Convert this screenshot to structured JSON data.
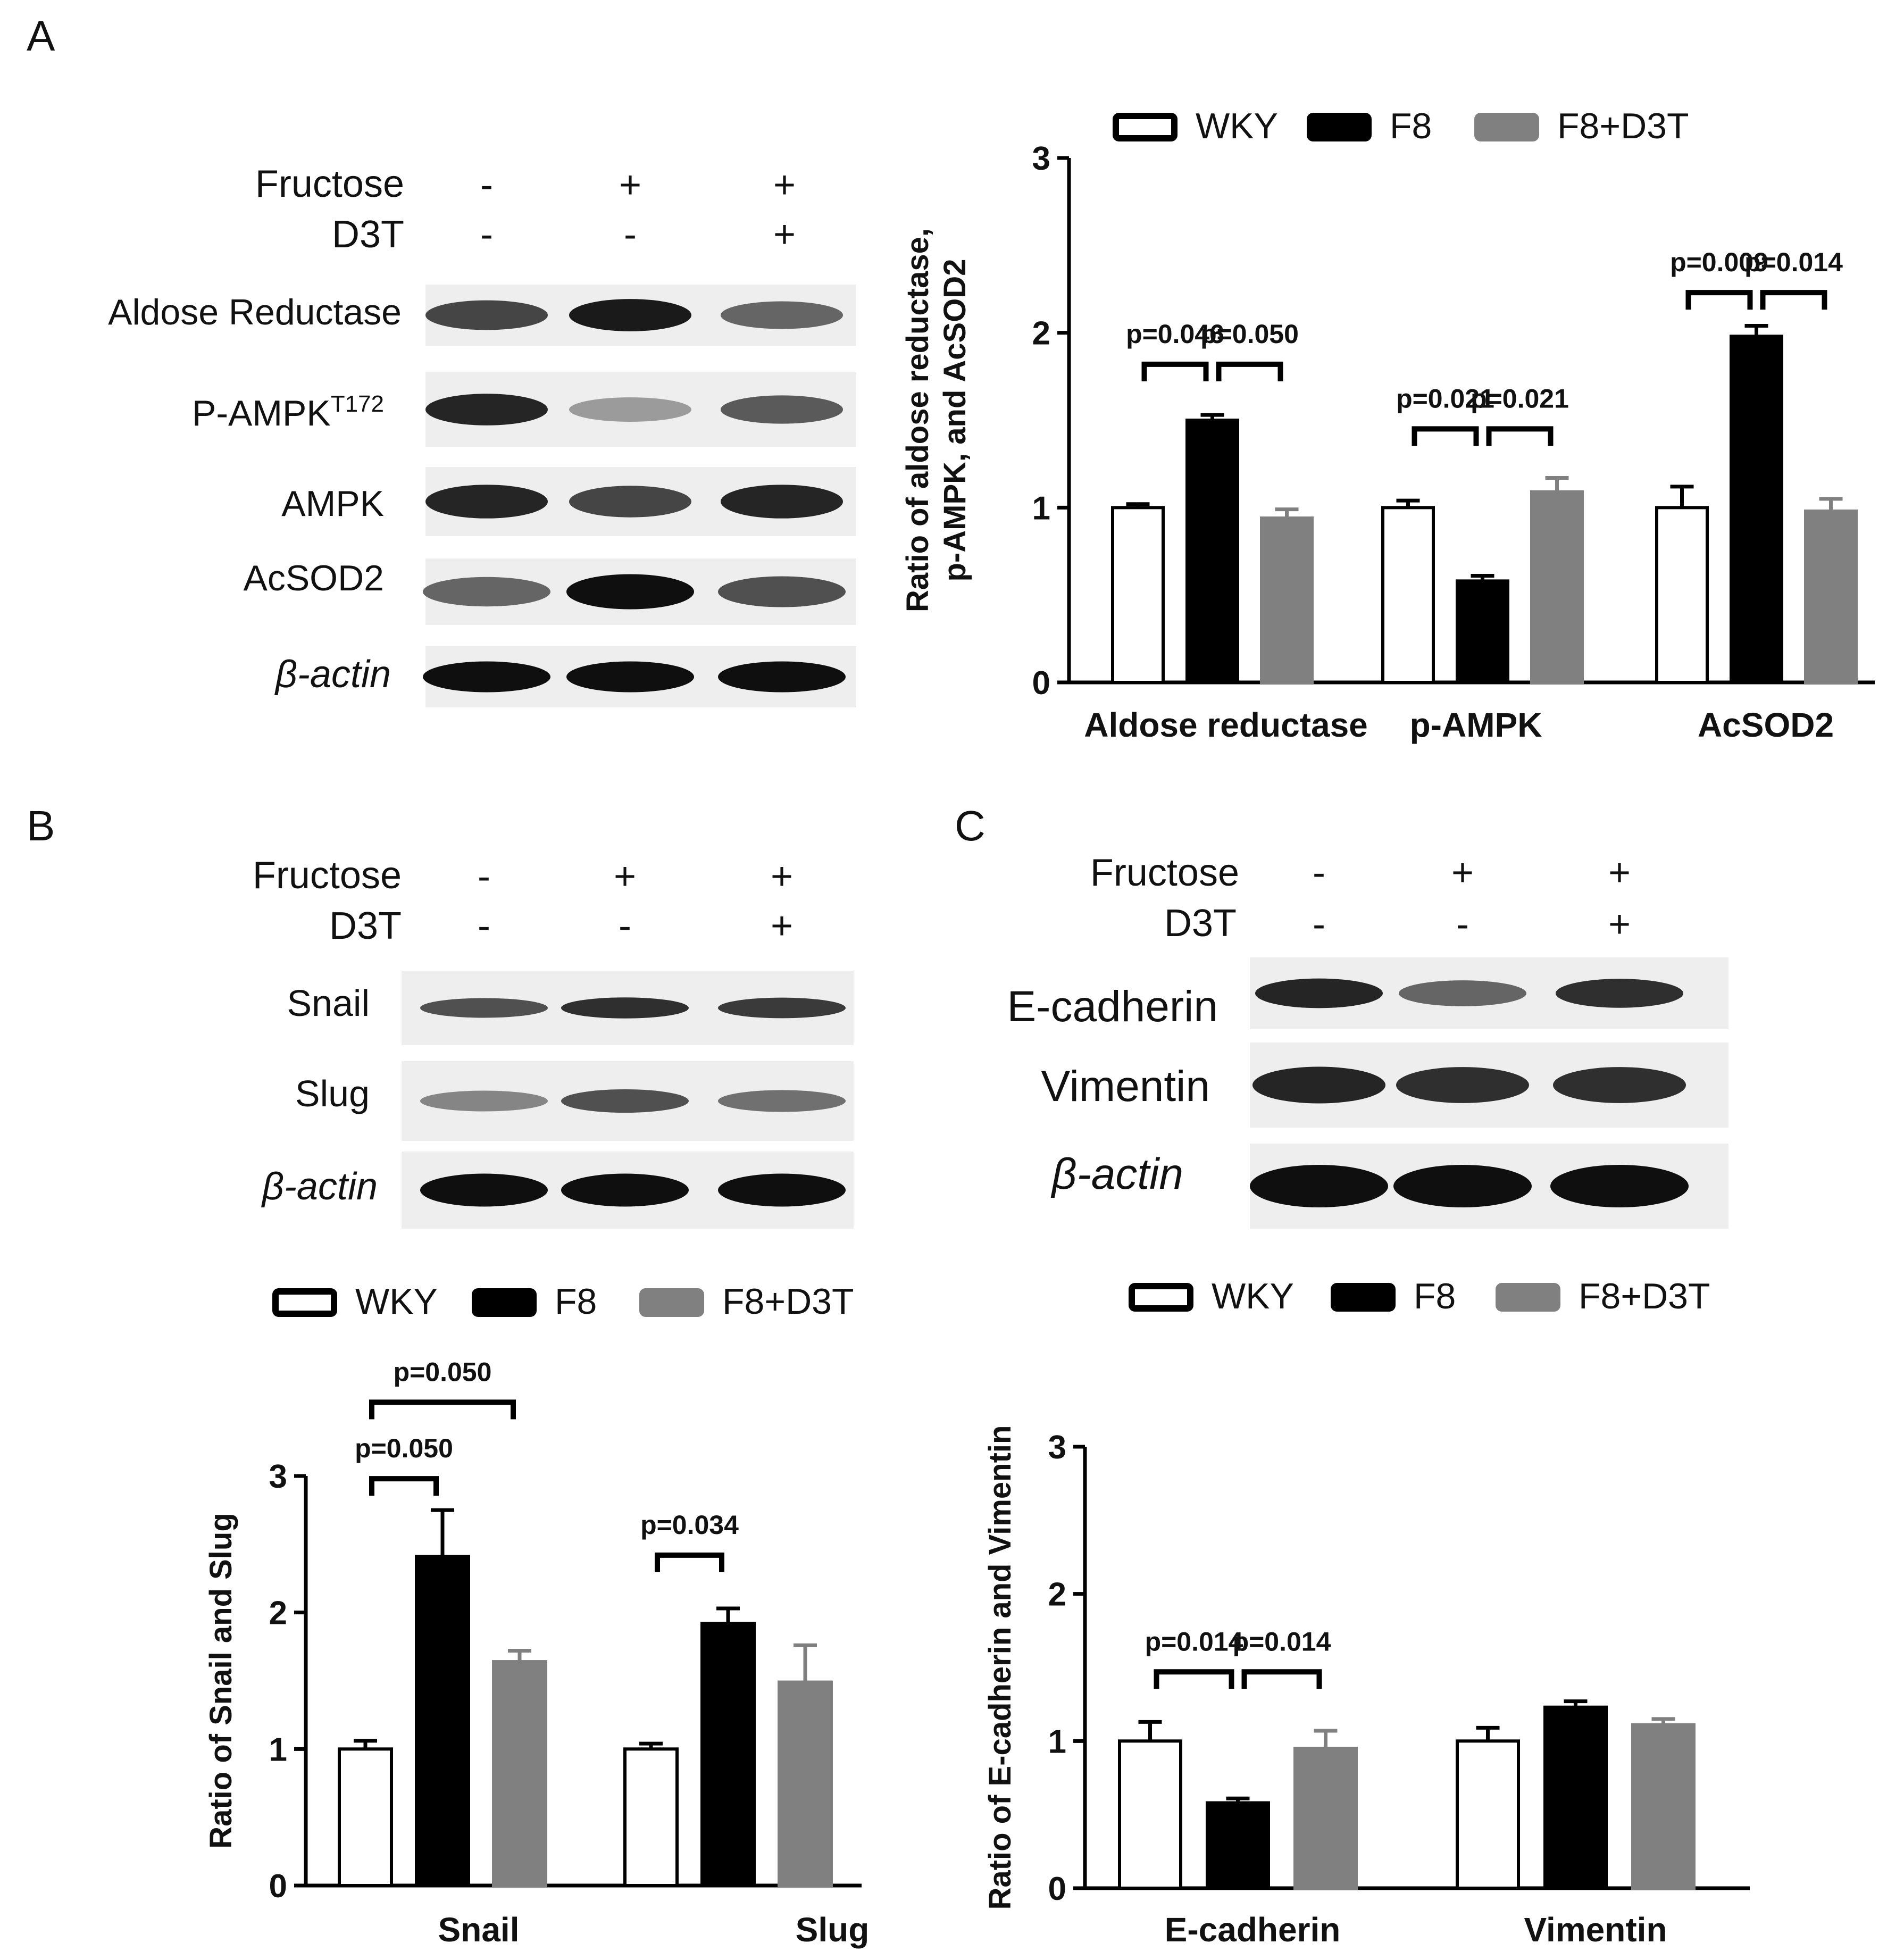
{
  "panels": {
    "A": "A",
    "B": "B",
    "C": "C"
  },
  "treatment": {
    "fructose": "Fructose",
    "d3t": "D3T",
    "fructose_marks": [
      "-",
      "+",
      "+"
    ],
    "d3t_marks": [
      "-",
      "-",
      "+"
    ]
  },
  "blot_labels": {
    "A": [
      "Aldose Reductase",
      "P-AMPK",
      "AMPK",
      "AcSOD2",
      "β-actin"
    ],
    "A_pampk_sup": "T172",
    "B": [
      "Snail",
      "Slug",
      "β-actin"
    ],
    "C": [
      "E-cadherin",
      "Vimentin",
      "β-actin"
    ]
  },
  "blot_intensity": {
    "A": [
      [
        0.75,
        0.95,
        0.6
      ],
      [
        0.9,
        0.35,
        0.65
      ],
      [
        0.9,
        0.75,
        0.9
      ],
      [
        0.6,
        1.0,
        0.7
      ],
      [
        1.0,
        1.0,
        1.0
      ]
    ],
    "B": [
      [
        0.7,
        0.85,
        0.8
      ],
      [
        0.45,
        0.7,
        0.55
      ],
      [
        1.0,
        1.0,
        1.0
      ]
    ],
    "C": [
      [
        0.9,
        0.6,
        0.85
      ],
      [
        0.9,
        0.85,
        0.85
      ],
      [
        1.0,
        1.0,
        1.0
      ]
    ]
  },
  "legend": {
    "items": [
      "WKY",
      "F8",
      "F8+D3T"
    ],
    "colors": [
      "#ffffff",
      "#000000",
      "#808080"
    ]
  },
  "chart_data": [
    {
      "id": "A",
      "type": "bar",
      "ylabel_line1": "Ratio of aldose reductase,",
      "ylabel_line2": "p-AMPK, and AcSOD2",
      "ylim": [
        0,
        3
      ],
      "yticks": [
        "0",
        "1",
        "2",
        "3"
      ],
      "categories": [
        "Aldose reductase",
        "p-AMPK",
        "AcSOD2"
      ],
      "series": [
        {
          "name": "WKY",
          "values": [
            1.0,
            1.0,
            1.0
          ],
          "errors": [
            0.02,
            0.04,
            0.12
          ]
        },
        {
          "name": "F8",
          "values": [
            1.5,
            0.58,
            1.98
          ],
          "errors": [
            0.03,
            0.03,
            0.06
          ]
        },
        {
          "name": "F8+D3T",
          "values": [
            0.94,
            1.09,
            0.98
          ],
          "errors": [
            0.05,
            0.08,
            0.07
          ]
        }
      ],
      "annotations": [
        {
          "text": "p=0.046",
          "cat": 0,
          "from": 0,
          "to": 1,
          "y": 1.82
        },
        {
          "text": "p=0.050",
          "cat": 0,
          "from": 1,
          "to": 2,
          "y": 1.82
        },
        {
          "text": "p=0.021",
          "cat": 1,
          "from": 0,
          "to": 1,
          "y": 1.45
        },
        {
          "text": "p=0.021",
          "cat": 1,
          "from": 1,
          "to": 2,
          "y": 1.45
        },
        {
          "text": "p=0.009",
          "cat": 2,
          "from": 0,
          "to": 1,
          "y": 2.23
        },
        {
          "text": "p=0.014",
          "cat": 2,
          "from": 1,
          "to": 2,
          "y": 2.23
        }
      ]
    },
    {
      "id": "B",
      "type": "bar",
      "ylabel": "Ratio of Snail and Slug",
      "ylim": [
        0,
        3
      ],
      "yticks": [
        "0",
        "1",
        "2",
        "3"
      ],
      "categories": [
        "Snail",
        "Slug"
      ],
      "series": [
        {
          "name": "WKY",
          "values": [
            1.0,
            1.0
          ],
          "errors": [
            0.06,
            0.04
          ]
        },
        {
          "name": "F8",
          "values": [
            2.41,
            1.92
          ],
          "errors": [
            0.34,
            0.11
          ]
        },
        {
          "name": "F8+D3T",
          "values": [
            1.64,
            1.49
          ],
          "errors": [
            0.08,
            0.27
          ]
        }
      ],
      "annotations": [
        {
          "text": "p=0.050",
          "cat": 0,
          "from": 0,
          "to": 1,
          "y": 2.98
        },
        {
          "text": "p=0.050",
          "cat": 0,
          "from": 0,
          "to": 2,
          "y": 3.54
        },
        {
          "text": "p=0.034",
          "cat": 1,
          "from": 0,
          "to": 1,
          "y": 2.42
        }
      ]
    },
    {
      "id": "C",
      "type": "bar",
      "ylabel": "Ratio of E-cadherin and Vimentin",
      "ylim": [
        0,
        3
      ],
      "yticks": [
        "0",
        "1",
        "2",
        "3"
      ],
      "categories": [
        "E-cadherin",
        "Vimentin"
      ],
      "series": [
        {
          "name": "WKY",
          "values": [
            1.0,
            1.0
          ],
          "errors": [
            0.13,
            0.09
          ]
        },
        {
          "name": "F8",
          "values": [
            0.58,
            1.23
          ],
          "errors": [
            0.03,
            0.04
          ]
        },
        {
          "name": "F8+D3T",
          "values": [
            0.95,
            1.11
          ],
          "errors": [
            0.12,
            0.04
          ]
        }
      ],
      "annotations": [
        {
          "text": "p=0.014",
          "cat": 0,
          "from": 0,
          "to": 1,
          "y": 1.47
        },
        {
          "text": "p=0.014",
          "cat": 0,
          "from": 1,
          "to": 2,
          "y": 1.47
        }
      ]
    }
  ]
}
